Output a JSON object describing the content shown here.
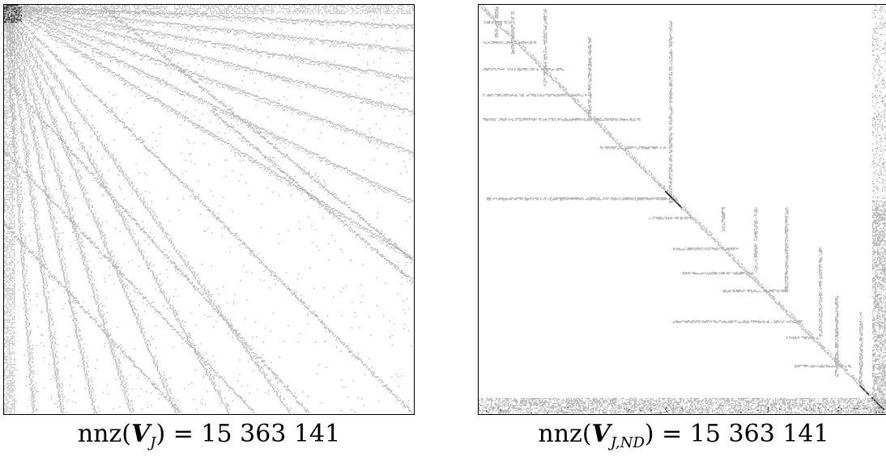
{
  "figure": {
    "panels": [
      {
        "caption": {
          "fn": "nnz(",
          "matrix": "V",
          "subscript": "J",
          "rest": ") = 15 363 141"
        },
        "pattern": "banded-fan"
      },
      {
        "caption": {
          "fn": "nnz(",
          "matrix": "V",
          "subscript": "J,ND",
          "rest": ") = 15 363 141"
        },
        "pattern": "nested-dissection"
      }
    ],
    "colors": {
      "nonzero": "#b3b3b3",
      "dense": "#222222",
      "frame": "#000000"
    }
  }
}
